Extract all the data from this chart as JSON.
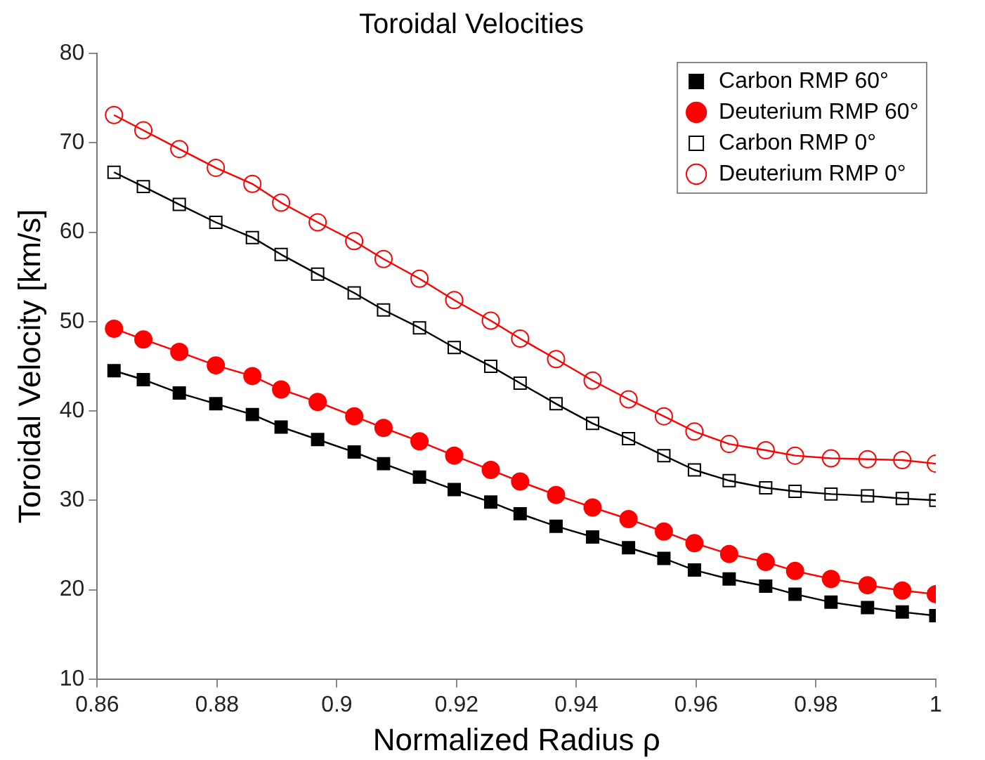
{
  "chart_data": {
    "type": "line",
    "title": "Toroidal Velocities",
    "xlabel": "Normalized Radius ρ",
    "ylabel": "Toroidal Velocity [km/s]",
    "x": [
      0.8628,
      0.8677,
      0.8737,
      0.8798,
      0.8859,
      0.8907,
      0.8968,
      0.9029,
      0.9078,
      0.9138,
      0.9196,
      0.9257,
      0.9306,
      0.9366,
      0.9427,
      0.9487,
      0.9546,
      0.9597,
      0.9655,
      0.9716,
      0.9765,
      0.9825,
      0.9886,
      0.9944,
      1.0
    ],
    "series": [
      {
        "name": "Carbon RMP 60°",
        "color": "#000000",
        "marker": "square",
        "values": [
          44.5,
          43.5,
          42.0,
          40.8,
          39.6,
          38.2,
          36.8,
          35.4,
          34.1,
          32.6,
          31.2,
          29.8,
          28.5,
          27.1,
          25.9,
          24.7,
          23.5,
          22.2,
          21.2,
          20.4,
          19.5,
          18.6,
          18.0,
          17.5,
          17.1
        ]
      },
      {
        "name": "Deuterium RMP 60°",
        "color": "#ff0000",
        "marker": "circle",
        "values": [
          49.2,
          48.0,
          46.6,
          45.1,
          43.9,
          42.4,
          41.0,
          39.4,
          38.1,
          36.6,
          35.0,
          33.4,
          32.1,
          30.6,
          29.2,
          27.9,
          26.5,
          25.2,
          24.0,
          23.1,
          22.1,
          21.2,
          20.5,
          19.9,
          19.5
        ]
      },
      {
        "name": "Carbon RMP 0°",
        "color": "#000000",
        "marker": "square-open",
        "values": [
          66.7,
          65.1,
          63.1,
          61.1,
          59.4,
          57.5,
          55.3,
          53.2,
          51.3,
          49.3,
          47.1,
          45.0,
          43.1,
          40.8,
          38.6,
          36.9,
          35.0,
          33.4,
          32.2,
          31.4,
          31.0,
          30.7,
          30.5,
          30.2,
          30.0
        ]
      },
      {
        "name": "Deuterium RMP 0°",
        "color": "#ff0000",
        "marker": "circle-open",
        "values": [
          73.1,
          71.4,
          69.3,
          67.2,
          65.4,
          63.3,
          61.1,
          59.0,
          57.0,
          54.8,
          52.4,
          50.1,
          48.1,
          45.8,
          43.4,
          41.3,
          39.4,
          37.7,
          36.3,
          35.6,
          35.0,
          34.7,
          34.6,
          34.5,
          34.1
        ]
      }
    ],
    "xlim": [
      0.86,
      1.0
    ],
    "xticks": [
      0.86,
      0.88,
      0.9,
      0.92,
      0.94,
      0.96,
      0.98,
      1
    ],
    "ylim": [
      10,
      80
    ],
    "yticks": [
      10,
      20,
      30,
      40,
      50,
      60,
      70,
      80
    ],
    "grid": false,
    "legend": "top right",
    "line_style": "solid"
  }
}
